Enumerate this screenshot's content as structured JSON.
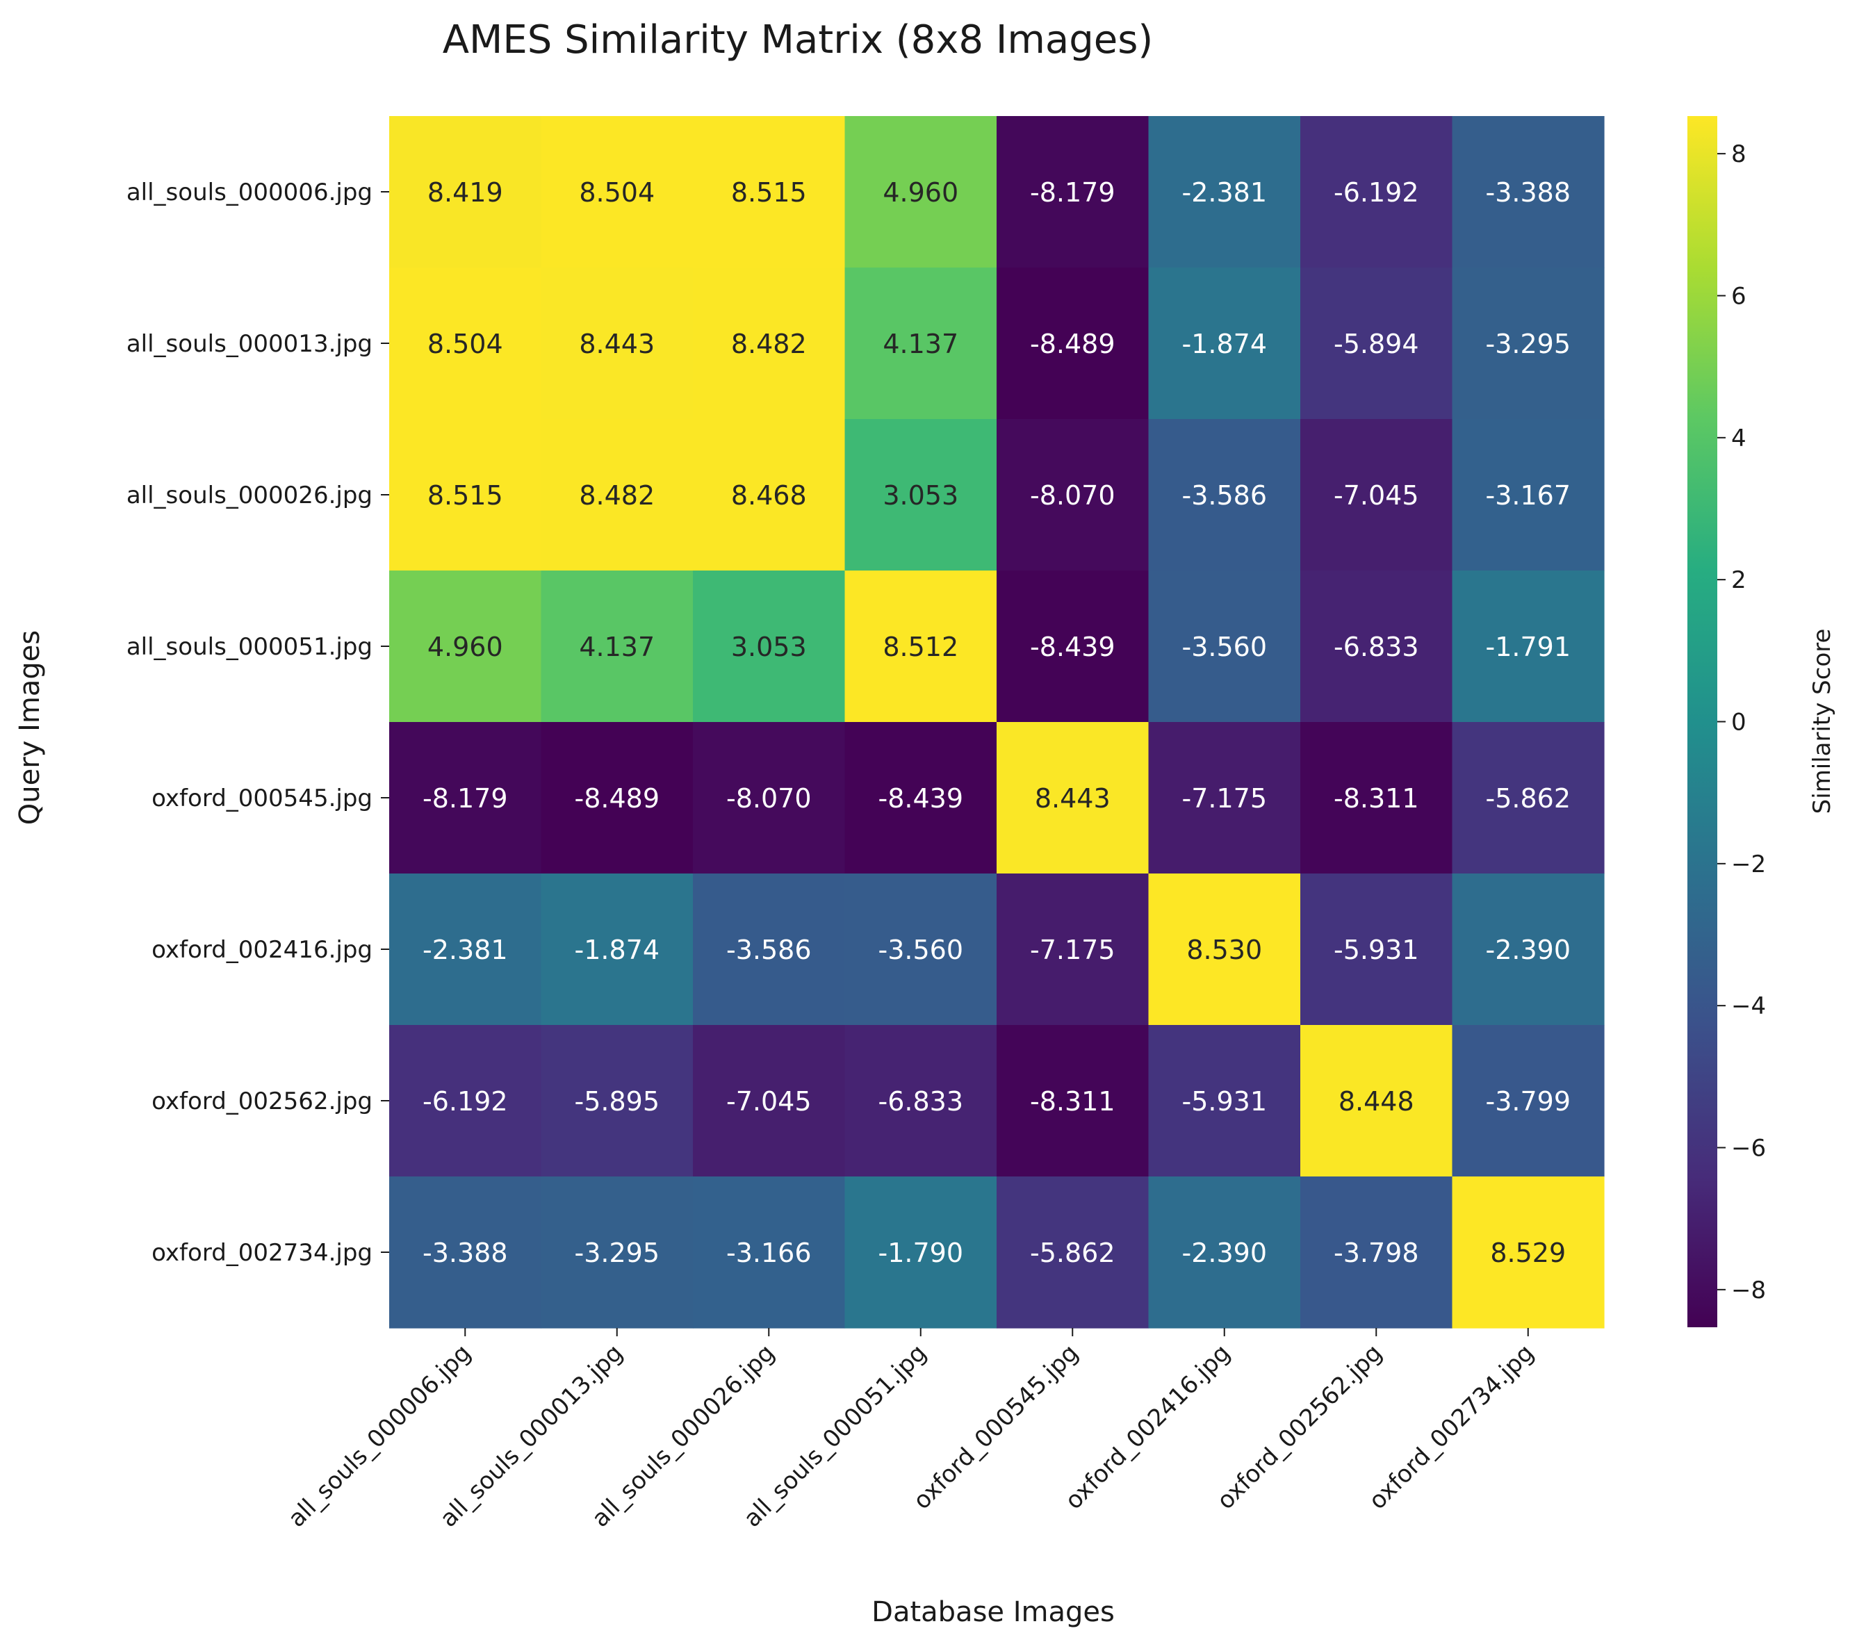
{
  "chart_data": {
    "type": "heatmap",
    "title": "AMES Similarity Matrix (8x8 Images)",
    "xlabel": "Database Images",
    "ylabel": "Query Images",
    "colorbar_label": "Similarity Score",
    "colormap": "viridis",
    "value_range": [
      -8.53,
      8.53
    ],
    "colorbar_ticks": [
      -8,
      -6,
      -4,
      -2,
      0,
      2,
      4,
      6,
      8
    ],
    "colorbar_tick_labels": [
      "−8",
      "−6",
      "−4",
      "−2",
      "0",
      "2",
      "4",
      "6",
      "8"
    ],
    "x_categories": [
      "all_souls_000006.jpg",
      "all_souls_000013.jpg",
      "all_souls_000026.jpg",
      "all_souls_000051.jpg",
      "oxford_000545.jpg",
      "oxford_002416.jpg",
      "oxford_002562.jpg",
      "oxford_002734.jpg"
    ],
    "y_categories": [
      "all_souls_000006.jpg",
      "all_souls_000013.jpg",
      "all_souls_000026.jpg",
      "all_souls_000051.jpg",
      "oxford_000545.jpg",
      "oxford_002416.jpg",
      "oxford_002562.jpg",
      "oxford_002734.jpg"
    ],
    "values": [
      [
        8.419,
        8.504,
        8.515,
        4.96,
        -8.179,
        -2.381,
        -6.192,
        -3.388
      ],
      [
        8.504,
        8.443,
        8.482,
        4.137,
        -8.489,
        -1.874,
        -5.894,
        -3.295
      ],
      [
        8.515,
        8.482,
        8.468,
        3.053,
        -8.07,
        -3.586,
        -7.045,
        -3.167
      ],
      [
        4.96,
        4.137,
        3.053,
        8.512,
        -8.439,
        -3.56,
        -6.833,
        -1.791
      ],
      [
        -8.179,
        -8.489,
        -8.07,
        -8.439,
        8.443,
        -7.175,
        -8.311,
        -5.862
      ],
      [
        -2.381,
        -1.874,
        -3.586,
        -3.56,
        -7.175,
        8.53,
        -5.931,
        -2.39
      ],
      [
        -6.192,
        -5.895,
        -7.045,
        -6.833,
        -8.311,
        -5.931,
        8.448,
        -3.799
      ],
      [
        -3.388,
        -3.295,
        -3.166,
        -1.79,
        -5.862,
        -2.39,
        -3.798,
        8.529
      ]
    ],
    "value_labels": [
      [
        "8.419",
        "8.504",
        "8.515",
        "4.960",
        "-8.179",
        "-2.381",
        "-6.192",
        "-3.388"
      ],
      [
        "8.504",
        "8.443",
        "8.482",
        "4.137",
        "-8.489",
        "-1.874",
        "-5.894",
        "-3.295"
      ],
      [
        "8.515",
        "8.482",
        "8.468",
        "3.053",
        "-8.070",
        "-3.586",
        "-7.045",
        "-3.167"
      ],
      [
        "4.960",
        "4.137",
        "3.053",
        "8.512",
        "-8.439",
        "-3.560",
        "-6.833",
        "-1.791"
      ],
      [
        "-8.179",
        "-8.489",
        "-8.070",
        "-8.439",
        "8.443",
        "-7.175",
        "-8.311",
        "-5.862"
      ],
      [
        "-2.381",
        "-1.874",
        "-3.586",
        "-3.560",
        "-7.175",
        "8.530",
        "-5.931",
        "-2.390"
      ],
      [
        "-6.192",
        "-5.895",
        "-7.045",
        "-6.833",
        "-8.311",
        "-5.931",
        "8.448",
        "-3.799"
      ],
      [
        "-3.388",
        "-3.295",
        "-3.166",
        "-1.790",
        "-5.862",
        "-2.390",
        "-3.798",
        "8.529"
      ]
    ],
    "grid": false
  }
}
